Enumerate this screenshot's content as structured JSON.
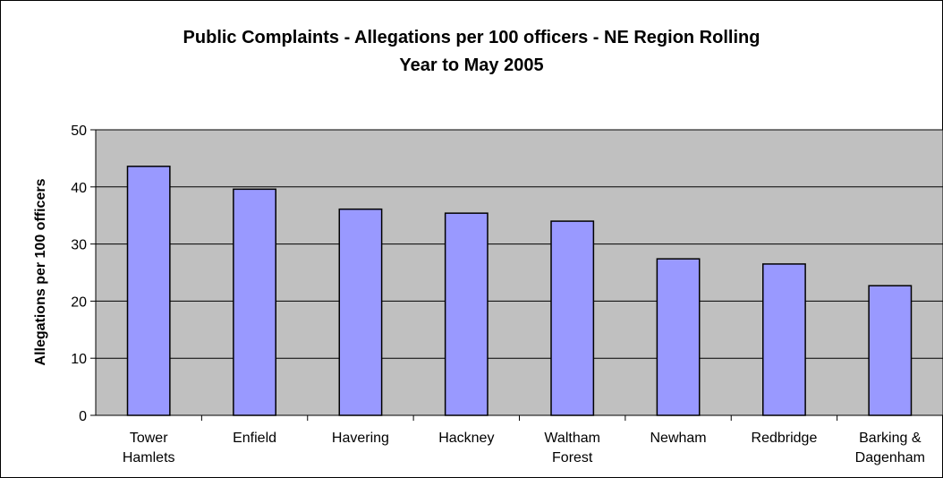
{
  "chart_data": {
    "type": "bar",
    "title_line1": "Public Complaints - Allegations per 100 officers - NE Region Rolling",
    "title_line2": "Year to May 2005",
    "ylabel": "Allegations per 100 officers",
    "xlabel": "",
    "ylim": [
      0,
      50
    ],
    "yticks": [
      0,
      10,
      20,
      30,
      40,
      50
    ],
    "grid": true,
    "legend": "none",
    "categories": [
      [
        "Tower",
        "Hamlets"
      ],
      [
        "Enfield"
      ],
      [
        "Havering"
      ],
      [
        "Hackney"
      ],
      [
        "Waltham",
        "Forest"
      ],
      [
        "Newham"
      ],
      [
        "Redbridge"
      ],
      [
        "Barking &",
        "Dagenham"
      ]
    ],
    "values": [
      43.6,
      39.6,
      36.1,
      35.4,
      34.0,
      27.4,
      26.5,
      22.7
    ],
    "colors": {
      "bar": "#9999ff",
      "plot_bg": "#c0c0c0",
      "grid": "#000000"
    }
  }
}
